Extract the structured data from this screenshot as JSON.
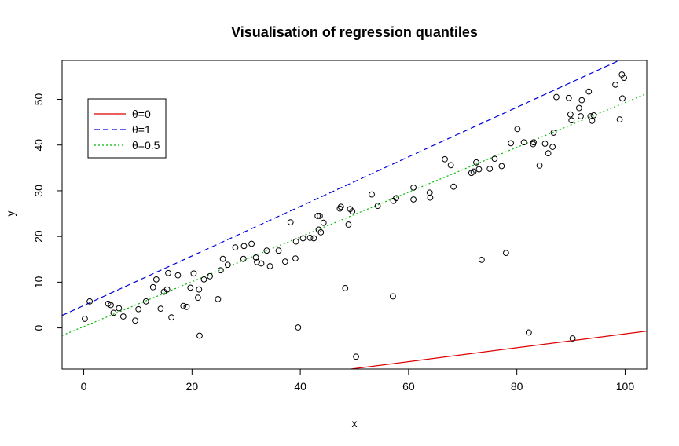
{
  "chart_data": {
    "type": "scatter",
    "title": "Visualisation of regression quantiles",
    "xlabel": "x",
    "ylabel": "y",
    "xlim": [
      -4,
      104
    ],
    "ylim": [
      -9,
      58.5
    ],
    "xticks": [
      0,
      20,
      40,
      60,
      80,
      100
    ],
    "yticks": [
      0,
      10,
      20,
      30,
      40,
      50
    ],
    "grid": false,
    "legend_position": "top-left",
    "points": [
      [
        0.2,
        2.0
      ],
      [
        1.1,
        5.8
      ],
      [
        4.5,
        5.3
      ],
      [
        5.0,
        5.0
      ],
      [
        5.5,
        3.3
      ],
      [
        6.5,
        4.3
      ],
      [
        7.3,
        2.5
      ],
      [
        9.5,
        1.6
      ],
      [
        10.1,
        4.1
      ],
      [
        11.5,
        5.8
      ],
      [
        12.8,
        8.9
      ],
      [
        13.4,
        10.6
      ],
      [
        14.2,
        4.2
      ],
      [
        14.8,
        7.9
      ],
      [
        15.4,
        8.4
      ],
      [
        15.6,
        12.0
      ],
      [
        16.2,
        2.3
      ],
      [
        17.4,
        11.5
      ],
      [
        18.4,
        4.8
      ],
      [
        19.0,
        4.6
      ],
      [
        19.7,
        8.8
      ],
      [
        20.3,
        11.9
      ],
      [
        21.1,
        6.6
      ],
      [
        21.3,
        8.4
      ],
      [
        21.4,
        -1.7
      ],
      [
        22.2,
        10.6
      ],
      [
        23.3,
        11.3
      ],
      [
        24.8,
        6.3
      ],
      [
        25.3,
        12.6
      ],
      [
        25.7,
        15.1
      ],
      [
        26.6,
        13.8
      ],
      [
        28.0,
        17.6
      ],
      [
        29.5,
        15.1
      ],
      [
        29.6,
        17.9
      ],
      [
        31.0,
        18.4
      ],
      [
        31.8,
        15.4
      ],
      [
        32.0,
        14.4
      ],
      [
        32.8,
        14.1
      ],
      [
        33.8,
        16.9
      ],
      [
        34.4,
        13.5
      ],
      [
        36.0,
        16.9
      ],
      [
        37.2,
        14.5
      ],
      [
        38.2,
        23.1
      ],
      [
        39.1,
        15.2
      ],
      [
        39.2,
        18.9
      ],
      [
        39.6,
        0.1
      ],
      [
        40.5,
        19.6
      ],
      [
        41.8,
        19.7
      ],
      [
        42.5,
        19.6
      ],
      [
        43.2,
        24.5
      ],
      [
        43.4,
        21.5
      ],
      [
        43.6,
        24.5
      ],
      [
        43.8,
        20.9
      ],
      [
        44.3,
        23.0
      ],
      [
        47.3,
        26.1
      ],
      [
        47.5,
        26.5
      ],
      [
        48.3,
        8.7
      ],
      [
        48.9,
        22.6
      ],
      [
        49.2,
        26.0
      ],
      [
        49.6,
        25.5
      ],
      [
        50.3,
        -6.3
      ],
      [
        53.2,
        29.2
      ],
      [
        54.3,
        26.7
      ],
      [
        57.1,
        6.9
      ],
      [
        57.2,
        27.8
      ],
      [
        57.7,
        28.4
      ],
      [
        60.9,
        30.7
      ],
      [
        60.9,
        28.1
      ],
      [
        63.9,
        29.6
      ],
      [
        64.0,
        28.5
      ],
      [
        66.7,
        36.9
      ],
      [
        67.8,
        35.6
      ],
      [
        68.3,
        30.9
      ],
      [
        71.6,
        33.9
      ],
      [
        72.0,
        34.2
      ],
      [
        72.5,
        36.2
      ],
      [
        73.0,
        34.7
      ],
      [
        73.5,
        14.9
      ],
      [
        75.0,
        34.8
      ],
      [
        75.9,
        37.0
      ],
      [
        77.2,
        35.4
      ],
      [
        78.0,
        16.4
      ],
      [
        78.9,
        40.4
      ],
      [
        80.1,
        43.5
      ],
      [
        81.3,
        40.6
      ],
      [
        82.2,
        -1.0
      ],
      [
        83.0,
        40.2
      ],
      [
        83.1,
        40.6
      ],
      [
        84.2,
        35.5
      ],
      [
        85.2,
        40.3
      ],
      [
        85.8,
        38.2
      ],
      [
        86.6,
        39.6
      ],
      [
        86.8,
        42.7
      ],
      [
        87.3,
        50.5
      ],
      [
        89.6,
        50.3
      ],
      [
        89.9,
        46.7
      ],
      [
        90.1,
        45.4
      ],
      [
        90.3,
        -2.3
      ],
      [
        91.5,
        48.1
      ],
      [
        91.8,
        46.3
      ],
      [
        92.0,
        49.8
      ],
      [
        93.3,
        51.7
      ],
      [
        93.6,
        46.3
      ],
      [
        93.9,
        45.3
      ],
      [
        94.2,
        46.5
      ],
      [
        98.2,
        53.2
      ],
      [
        99.0,
        45.6
      ],
      [
        99.4,
        55.4
      ],
      [
        99.5,
        50.2
      ],
      [
        99.8,
        54.7
      ]
    ],
    "series": [
      {
        "name": "θ=0",
        "type": "line",
        "color": "#dd0000",
        "dash": "solid",
        "intercept": -16.5,
        "slope": 0.152
      },
      {
        "name": "θ=1",
        "type": "line",
        "color": "#0000dd",
        "dash": "dashed",
        "intercept": 4.9,
        "slope": 0.542
      },
      {
        "name": "θ=0.5",
        "type": "line",
        "color": "#00bb00",
        "dash": "dotted",
        "intercept": 0.3,
        "slope": 0.49
      }
    ]
  }
}
